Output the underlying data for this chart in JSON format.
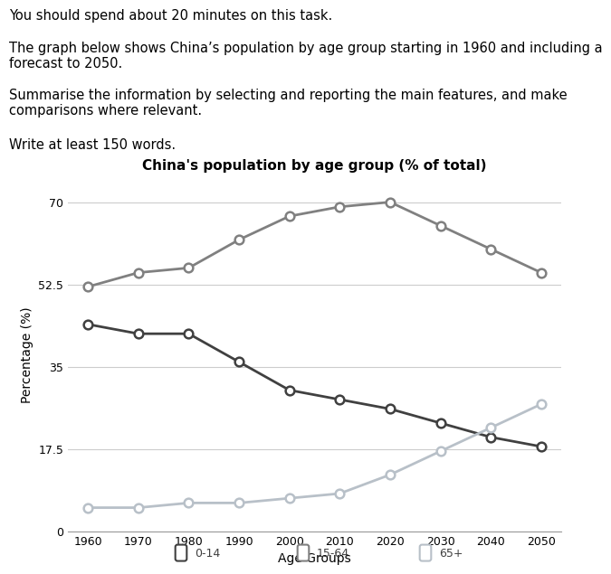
{
  "title": "China's population by age group (% of total)",
  "xlabel": "Age Groups",
  "ylabel": "Percentage (%)",
  "years": [
    1960,
    1970,
    1980,
    1990,
    2000,
    2010,
    2020,
    2030,
    2040,
    2050
  ],
  "age_0_14": [
    44,
    42,
    42,
    36,
    30,
    28,
    26,
    23,
    20,
    18
  ],
  "age_15_64": [
    52,
    55,
    56,
    62,
    67,
    69,
    70,
    65,
    60,
    55
  ],
  "age_65plus": [
    5,
    5,
    6,
    6,
    7,
    8,
    12,
    17,
    22,
    27
  ],
  "yticks": [
    0,
    17.5,
    35,
    52.5,
    70
  ],
  "ylim": [
    0,
    75
  ],
  "color_0_14": "#404040",
  "color_15_64": "#808080",
  "color_65plus": "#b8c0c8",
  "background_color": "#ffffff",
  "text_blocks": [
    "You should spend about 20 minutes on this task.",
    "The graph below shows China’s population by age group starting in 1960 and including a\nforecast to 2050.",
    "Summarise the information by selecting and reporting the main features, and make\ncomparisons where relevant.",
    "Write at least 150 words."
  ],
  "legend_labels": [
    "0-14",
    "15-64",
    "65+"
  ]
}
